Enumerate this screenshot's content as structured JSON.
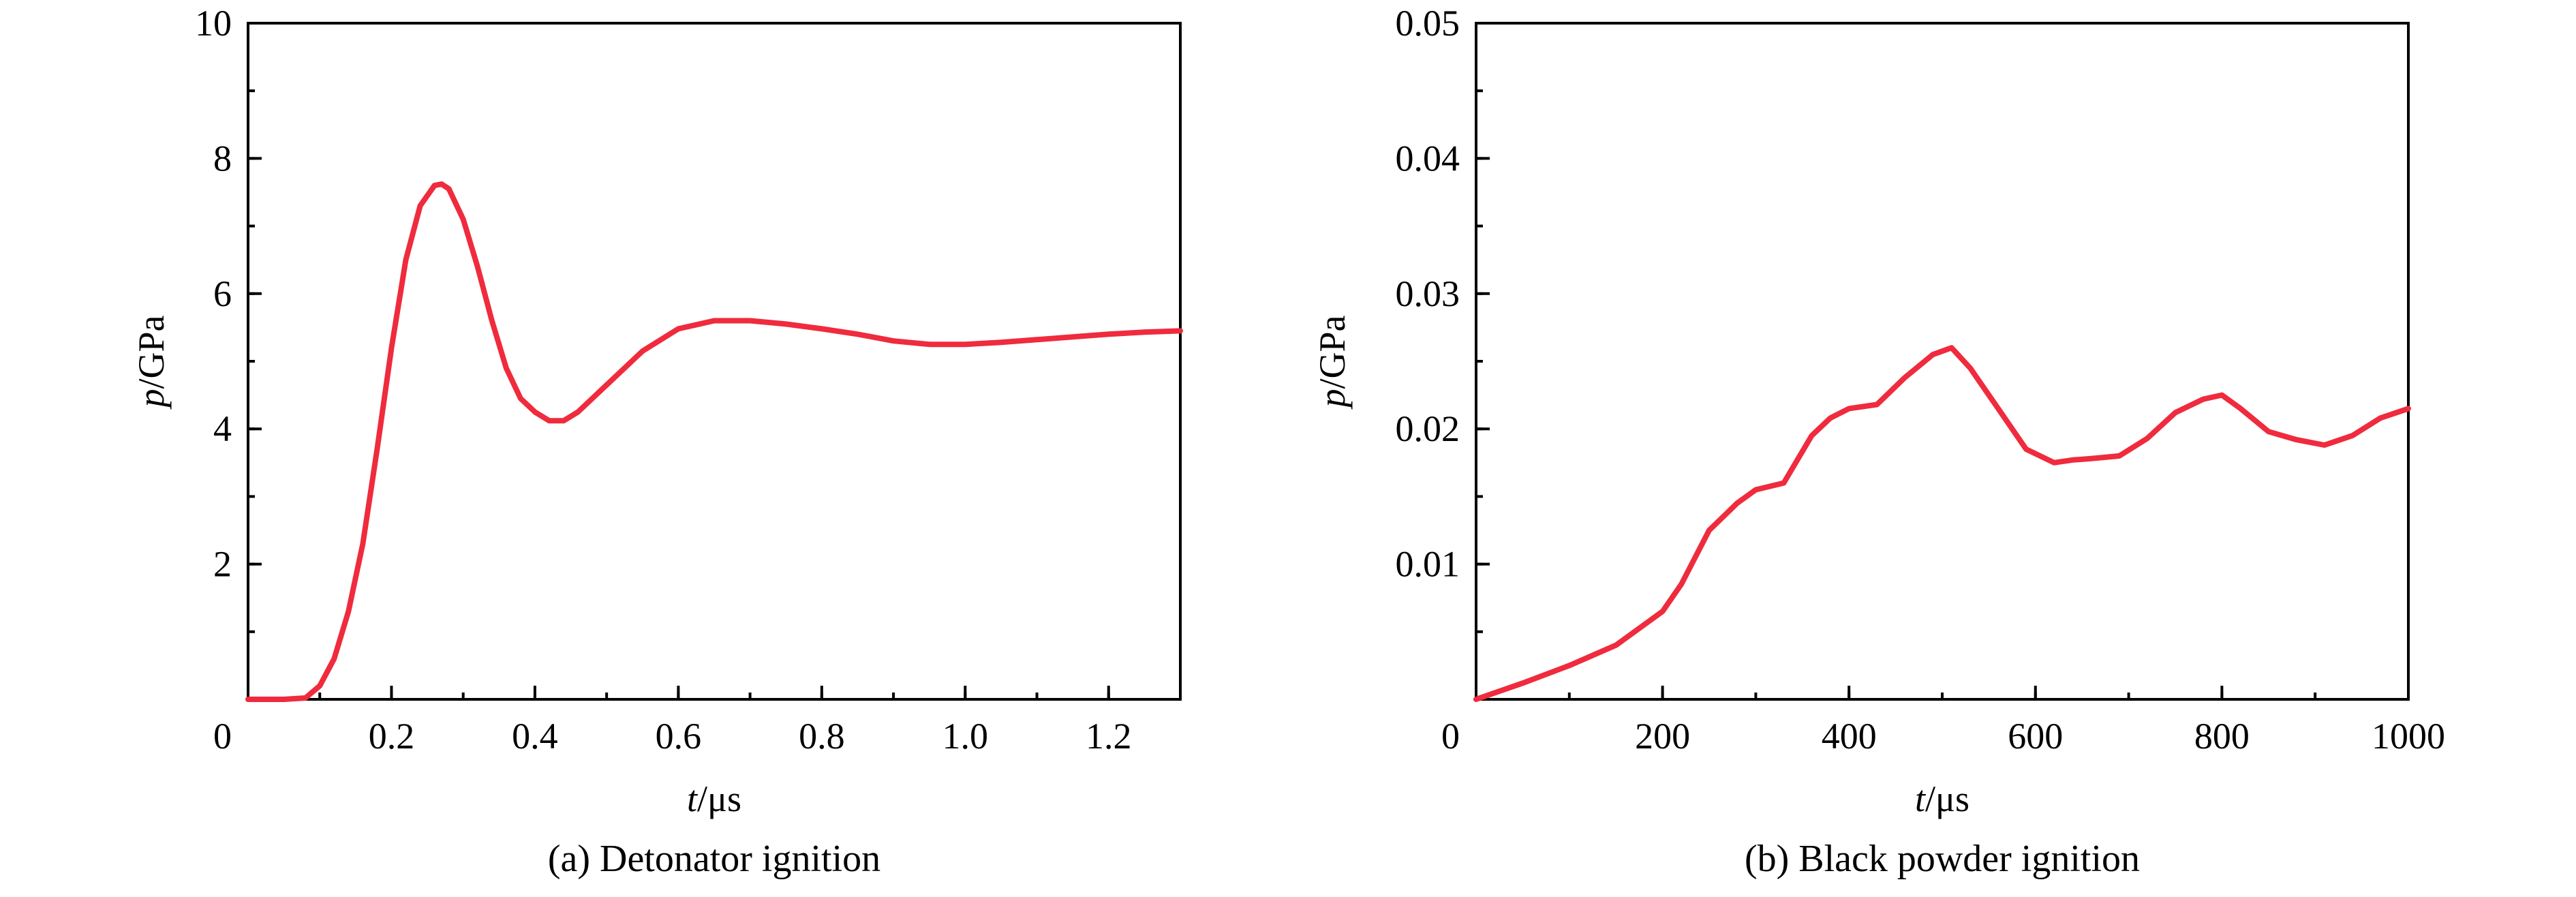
{
  "colors": {
    "series": "#ef2b3d",
    "axis": "#000000"
  },
  "chart_data": [
    {
      "type": "line",
      "caption": "(a) Detonator ignition",
      "xlabel": {
        "italic": "t",
        "unit": "/μs"
      },
      "ylabel": {
        "italic": "p",
        "unit": "/GPa"
      },
      "xlim": [
        0,
        1.3
      ],
      "ylim": [
        0,
        10
      ],
      "xticks": [
        0.2,
        0.4,
        0.6,
        0.8,
        1.0,
        1.2
      ],
      "xtick_labels": [
        "0.2",
        "0.4",
        "0.6",
        "0.8",
        "1.0",
        "1.2"
      ],
      "yticks": [
        2,
        4,
        6,
        8,
        10
      ],
      "ytick_labels": [
        "2",
        "4",
        "6",
        "8",
        "10"
      ],
      "origin_label": "0",
      "minor_xtick_step": 0.1,
      "minor_ytick_step": 1,
      "grid": false,
      "series": [
        {
          "x": [
            0,
            0.05,
            0.08,
            0.1,
            0.12,
            0.14,
            0.16,
            0.18,
            0.2,
            0.22,
            0.24,
            0.26,
            0.27,
            0.28,
            0.3,
            0.32,
            0.34,
            0.36,
            0.38,
            0.4,
            0.42,
            0.44,
            0.46,
            0.48,
            0.5,
            0.55,
            0.6,
            0.65,
            0.7,
            0.75,
            0.8,
            0.85,
            0.9,
            0.95,
            1.0,
            1.05,
            1.1,
            1.15,
            1.2,
            1.25,
            1.3
          ],
          "y": [
            0,
            0,
            0.02,
            0.2,
            0.6,
            1.3,
            2.3,
            3.7,
            5.2,
            6.5,
            7.3,
            7.6,
            7.62,
            7.55,
            7.1,
            6.4,
            5.6,
            4.9,
            4.45,
            4.25,
            4.12,
            4.12,
            4.25,
            4.45,
            4.65,
            5.15,
            5.48,
            5.6,
            5.6,
            5.55,
            5.48,
            5.4,
            5.3,
            5.25,
            5.25,
            5.28,
            5.32,
            5.36,
            5.4,
            5.43,
            5.45
          ]
        }
      ]
    },
    {
      "type": "line",
      "caption": "(b) Black powder ignition",
      "xlabel": {
        "italic": "t",
        "unit": "/μs"
      },
      "ylabel": {
        "italic": "p",
        "unit": "/GPa"
      },
      "xlim": [
        0,
        1000
      ],
      "ylim": [
        0,
        0.05
      ],
      "xticks": [
        200,
        400,
        600,
        800,
        1000
      ],
      "xtick_labels": [
        "200",
        "400",
        "600",
        "800",
        "1000"
      ],
      "yticks": [
        0.01,
        0.02,
        0.03,
        0.04,
        0.05
      ],
      "ytick_labels": [
        "0.01",
        "0.02",
        "0.03",
        "0.04",
        "0.05"
      ],
      "origin_label": "0",
      "minor_xtick_step": 100,
      "minor_ytick_step": 0.005,
      "grid": false,
      "series": [
        {
          "x": [
            0,
            50,
            100,
            150,
            200,
            220,
            250,
            280,
            300,
            330,
            360,
            380,
            400,
            430,
            460,
            490,
            510,
            530,
            560,
            590,
            620,
            640,
            660,
            690,
            720,
            750,
            780,
            800,
            820,
            850,
            880,
            910,
            940,
            970,
            1000
          ],
          "y": [
            0,
            0.0012,
            0.0025,
            0.004,
            0.0065,
            0.0085,
            0.0125,
            0.0145,
            0.0155,
            0.016,
            0.0195,
            0.0208,
            0.0215,
            0.0218,
            0.0238,
            0.0255,
            0.026,
            0.0245,
            0.0215,
            0.0185,
            0.0175,
            0.0177,
            0.0178,
            0.018,
            0.0193,
            0.0212,
            0.0222,
            0.0225,
            0.0215,
            0.0198,
            0.0192,
            0.0188,
            0.0195,
            0.0208,
            0.0215
          ]
        }
      ]
    }
  ]
}
